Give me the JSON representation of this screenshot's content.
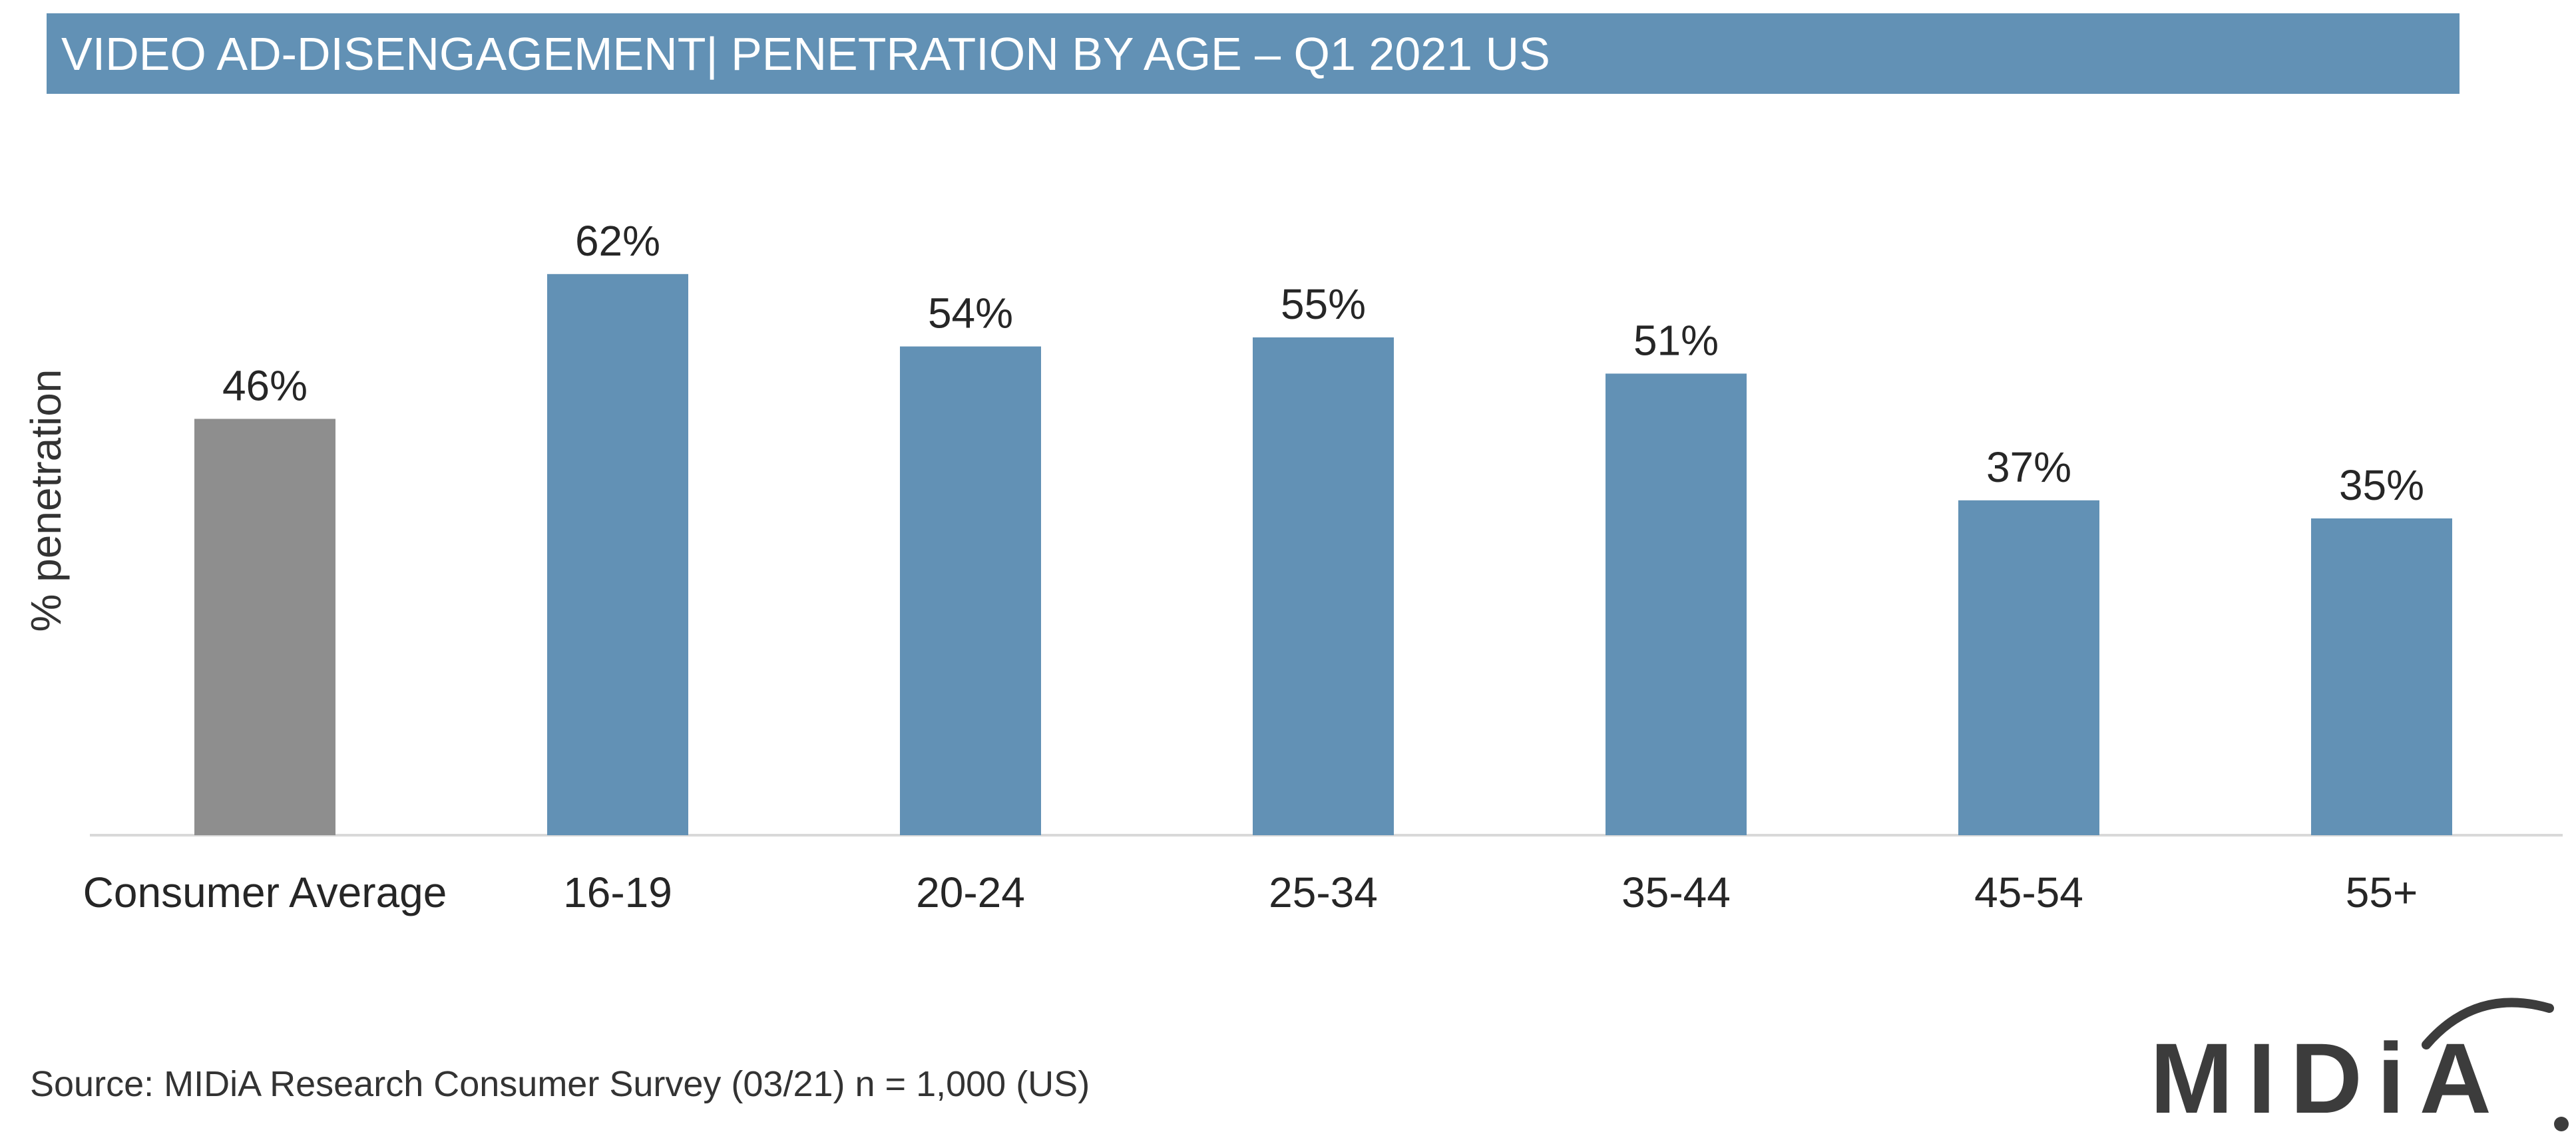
{
  "chart_data": {
    "type": "bar",
    "title": "VIDEO AD-DISENGAGEMENT| PENETRATION BY AGE – Q1 2021 US",
    "ylabel": "% penetration",
    "xlabel": "",
    "categories": [
      "Consumer Average",
      "16-19",
      "20-24",
      "25-34",
      "35-44",
      "45-54",
      "55+"
    ],
    "values": [
      46,
      62,
      54,
      55,
      51,
      37,
      35
    ],
    "value_labels": [
      "46%",
      "62%",
      "54%",
      "55%",
      "51%",
      "37%",
      "35%"
    ],
    "bar_colors": [
      "#8e8e8e",
      "#6291b5",
      "#6291b5",
      "#6291b5",
      "#6291b5",
      "#6291b5",
      "#6291b5"
    ],
    "ylim": [
      0,
      70
    ],
    "grid": false,
    "legend": "none"
  },
  "footer": {
    "source": "Source: MIDiA Research Consumer Survey (03/21) n = 1,000 (US)",
    "logo_text": "MIDiA"
  },
  "colors": {
    "title_bar": "#6291b5",
    "accent_bar": "#6291b5",
    "average_bar": "#8e8e8e",
    "axis": "#d9d9d9"
  }
}
